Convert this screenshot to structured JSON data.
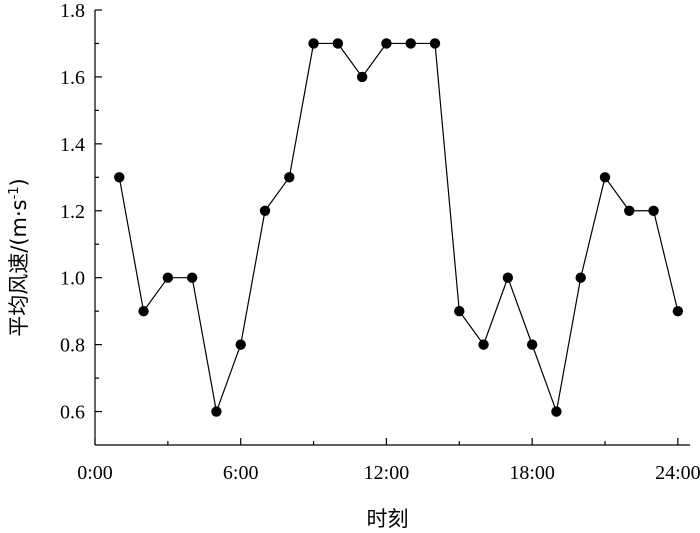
{
  "chart_data": {
    "type": "line",
    "xlabel": "时刻",
    "ylabel_main": "平均风速/(m·s",
    "ylabel_sup": "-1",
    "ylabel_close": ")",
    "xlim": [
      0,
      24.5
    ],
    "ylim": [
      0.5,
      1.8
    ],
    "x_ticks": [
      0,
      6,
      12,
      18,
      24
    ],
    "x_tick_labels": [
      "0:00",
      "6:00",
      "12:00",
      "18:00",
      "24:00"
    ],
    "y_ticks": [
      0.6,
      0.8,
      1.0,
      1.2,
      1.4,
      1.6,
      1.8
    ],
    "y_tick_labels": [
      "0.6",
      "0.8",
      "1.0",
      "1.2",
      "1.4",
      "1.6",
      "1.8"
    ],
    "y_minor_ticks": [
      0.7,
      0.9,
      1.1,
      1.3,
      1.5,
      1.7
    ],
    "x_minor_ticks": [
      3,
      9,
      15,
      21
    ],
    "grid": false,
    "series": [
      {
        "x": [
          1,
          2,
          3,
          4,
          5,
          6,
          7,
          8,
          9,
          10,
          11,
          12,
          13,
          14,
          15,
          16,
          17,
          18,
          19,
          20,
          21,
          22,
          23,
          24
        ],
        "values": [
          1.3,
          0.9,
          1.0,
          1.0,
          0.6,
          0.8,
          1.2,
          1.3,
          1.7,
          1.7,
          1.6,
          1.7,
          1.7,
          1.7,
          0.9,
          0.8,
          1.0,
          0.8,
          0.6,
          1.0,
          1.3,
          1.2,
          1.2,
          0.9
        ],
        "color": "#000000"
      }
    ]
  }
}
